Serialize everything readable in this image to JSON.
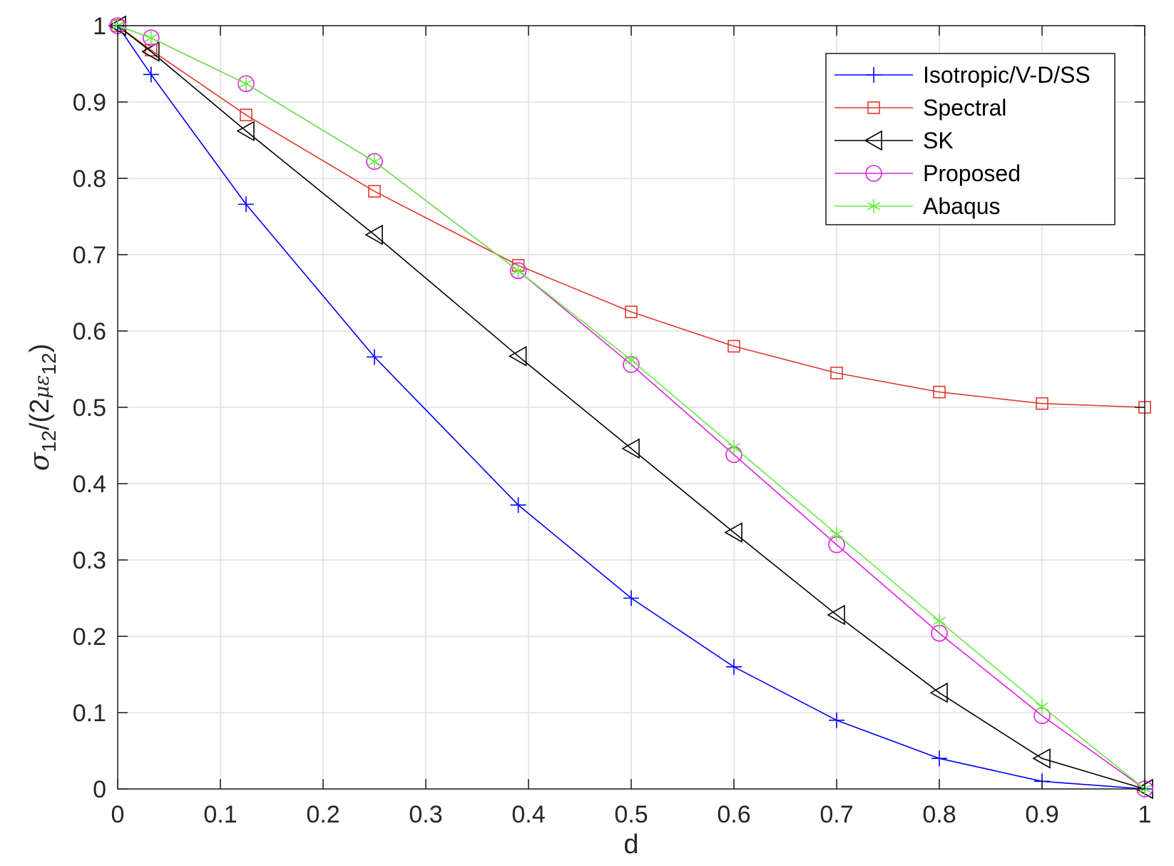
{
  "chart_data": {
    "type": "line",
    "title": "",
    "xlabel": "d",
    "ylabel": {
      "sigma": "σ",
      "sub12a": "12",
      "mid": "/(2",
      "mu_eps": "με",
      "sub12b": "12",
      "close": ")"
    },
    "xlim": [
      0,
      1
    ],
    "ylim": [
      0,
      1
    ],
    "xticks": [
      0,
      0.1,
      0.2,
      0.3,
      0.4,
      0.5,
      0.6,
      0.7,
      0.8,
      0.9,
      1
    ],
    "yticks": [
      0,
      0.1,
      0.2,
      0.3,
      0.4,
      0.5,
      0.6,
      0.7,
      0.8,
      0.9,
      1
    ],
    "xtick_labels": [
      "0",
      "0.1",
      "0.2",
      "0.3",
      "0.4",
      "0.5",
      "0.6",
      "0.7",
      "0.8",
      "0.9",
      "1"
    ],
    "ytick_labels": [
      "0",
      "0.1",
      "0.2",
      "0.3",
      "0.4",
      "0.5",
      "0.6",
      "0.7",
      "0.8",
      "0.9",
      "1"
    ],
    "grid": true,
    "legend_position": "top-right",
    "series": [
      {
        "name": "Isotropic/V-D/SS",
        "color": "#0000ff",
        "marker": "plus",
        "x": [
          0,
          0.0325,
          0.125,
          0.25,
          0.39,
          0.5,
          0.6,
          0.7,
          0.8,
          0.9,
          1
        ],
        "y": [
          1,
          0.936,
          0.766,
          0.566,
          0.372,
          0.25,
          0.16,
          0.09,
          0.04,
          0.01,
          0
        ]
      },
      {
        "name": "Spectral",
        "color": "#e0382a",
        "marker": "square",
        "x": [
          0,
          0.0325,
          0.125,
          0.25,
          0.39,
          0.5,
          0.6,
          0.7,
          0.8,
          0.9,
          1
        ],
        "y": [
          1,
          0.968,
          0.883,
          0.783,
          0.686,
          0.625,
          0.58,
          0.545,
          0.52,
          0.505,
          0.5
        ]
      },
      {
        "name": "SK",
        "color": "#000000",
        "marker": "triangle-left",
        "x": [
          0,
          0.0325,
          0.125,
          0.25,
          0.39,
          0.5,
          0.6,
          0.7,
          0.8,
          0.9,
          1
        ],
        "y": [
          1,
          0.966,
          0.862,
          0.726,
          0.567,
          0.446,
          0.336,
          0.228,
          0.126,
          0.04,
          0
        ]
      },
      {
        "name": "Proposed",
        "color": "#e020e0",
        "marker": "circle",
        "x": [
          0,
          0.0325,
          0.125,
          0.25,
          0.39,
          0.5,
          0.6,
          0.7,
          0.8,
          0.9,
          1
        ],
        "y": [
          1,
          0.984,
          0.924,
          0.822,
          0.679,
          0.556,
          0.438,
          0.32,
          0.204,
          0.096,
          0
        ]
      },
      {
        "name": "Abaqus",
        "color": "#66ee44",
        "marker": "asterisk",
        "x": [
          0,
          0.0325,
          0.125,
          0.25,
          0.39,
          0.5,
          0.6,
          0.7,
          0.8,
          0.9,
          1
        ],
        "y": [
          1,
          0.984,
          0.924,
          0.822,
          0.679,
          0.562,
          0.448,
          0.334,
          0.22,
          0.108,
          0
        ]
      }
    ]
  }
}
